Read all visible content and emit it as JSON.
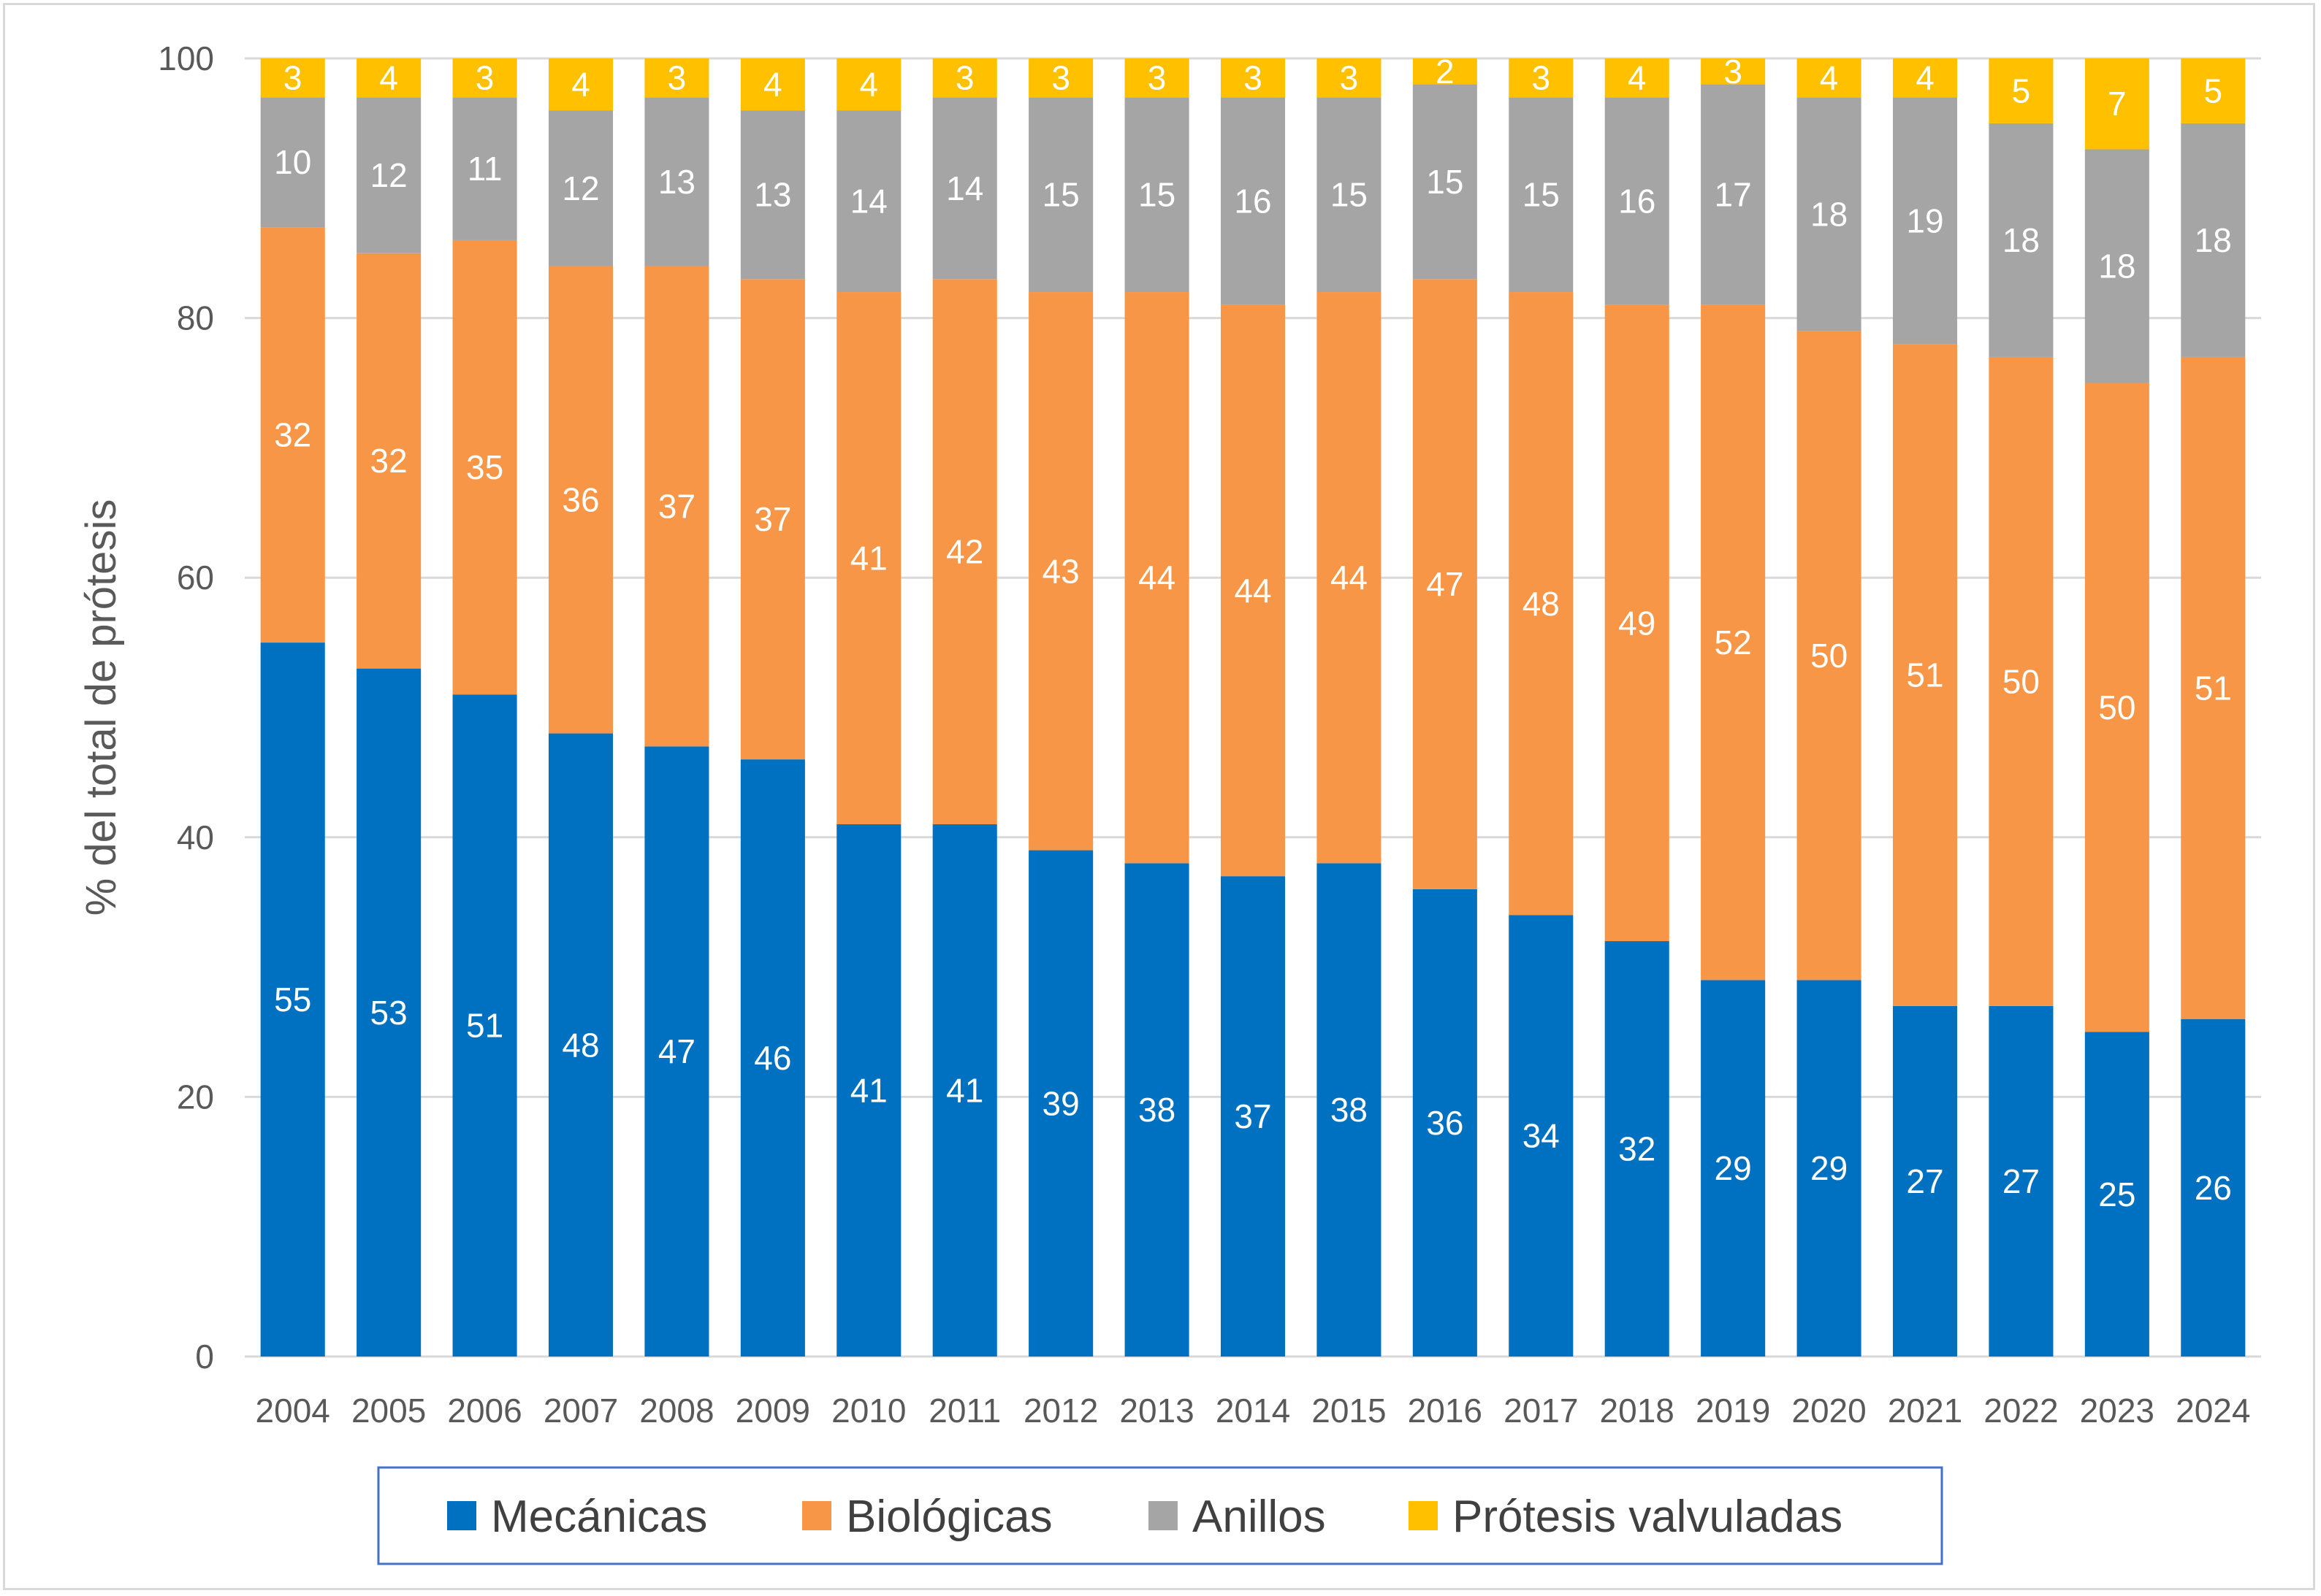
{
  "chart_data": {
    "type": "bar",
    "stacked": true,
    "ylabel": "% del total de prótesis",
    "xlabel": "",
    "ylim": [
      0,
      100
    ],
    "yticks": [
      0,
      20,
      40,
      60,
      80,
      100
    ],
    "grid": true,
    "legend_position": "bottom",
    "categories": [
      "2004",
      "2005",
      "2006",
      "2007",
      "2008",
      "2009",
      "2010",
      "2011",
      "2012",
      "2013",
      "2014",
      "2015",
      "2016",
      "2017",
      "2018",
      "2019",
      "2020",
      "2021",
      "2022",
      "2023",
      "2024"
    ],
    "series": [
      {
        "name": "Mecánicas",
        "color": "#0070c0",
        "values": [
          55,
          53,
          51,
          48,
          47,
          46,
          41,
          41,
          39,
          38,
          37,
          38,
          36,
          34,
          32,
          29,
          29,
          27,
          27,
          25,
          26
        ]
      },
      {
        "name": "Biológicas",
        "color": "#f79646",
        "values": [
          32,
          32,
          35,
          36,
          37,
          37,
          41,
          42,
          43,
          44,
          44,
          44,
          47,
          48,
          49,
          52,
          50,
          51,
          50,
          50,
          51
        ]
      },
      {
        "name": "Anillos",
        "color": "#a5a5a5",
        "values": [
          10,
          12,
          11,
          12,
          13,
          13,
          14,
          14,
          15,
          15,
          16,
          15,
          15,
          15,
          16,
          17,
          18,
          19,
          18,
          18,
          18
        ]
      },
      {
        "name": "Prótesis valvuladas",
        "color": "#ffc000",
        "values": [
          3,
          4,
          3,
          4,
          3,
          4,
          4,
          3,
          3,
          3,
          3,
          3,
          2,
          3,
          4,
          3,
          4,
          4,
          5,
          7,
          5
        ]
      }
    ]
  }
}
